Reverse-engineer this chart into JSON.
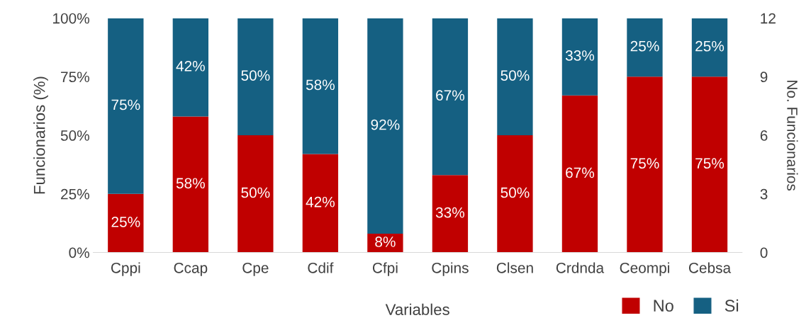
{
  "chart_data": {
    "type": "bar",
    "stacked": true,
    "xlabel": "Variables",
    "ylabel": "Funcionarios (%)",
    "y2label": "No. Funcionarios",
    "categories": [
      "Cppi",
      "Ccap",
      "Cpe",
      "Cdif",
      "Cfpi",
      "Cpins",
      "Clsen",
      "Crdnda",
      "Ceompi",
      "Cebsa"
    ],
    "series": [
      {
        "name": "No",
        "color": "#c00000",
        "values": [
          25,
          58,
          50,
          42,
          8,
          33,
          50,
          67,
          75,
          75
        ],
        "value_labels": [
          "25%",
          "58%",
          "50%",
          "42%",
          "8%",
          "33%",
          "50%",
          "67%",
          "75%",
          "75%"
        ]
      },
      {
        "name": "Si",
        "color": "#156082",
        "values": [
          75,
          42,
          50,
          58,
          92,
          67,
          50,
          33,
          25,
          25
        ],
        "value_labels": [
          "75%",
          "42%",
          "50%",
          "58%",
          "92%",
          "67%",
          "50%",
          "33%",
          "25%",
          "25%"
        ]
      }
    ],
    "ylim": [
      0,
      100
    ],
    "yticks": [
      {
        "value": 0,
        "label": "0%"
      },
      {
        "value": 25,
        "label": "25%"
      },
      {
        "value": 50,
        "label": "50%"
      },
      {
        "value": 75,
        "label": "75%"
      },
      {
        "value": 100,
        "label": "100%"
      }
    ],
    "y2lim": [
      0,
      12
    ],
    "y2ticks": [
      0,
      3,
      6,
      9,
      12
    ],
    "grid": false,
    "legend": "bottom right"
  }
}
